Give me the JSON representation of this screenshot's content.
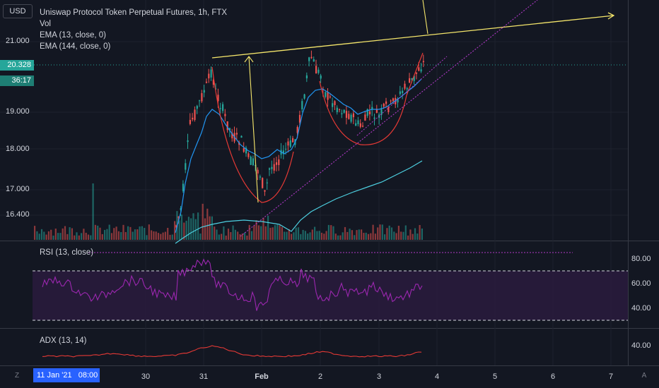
{
  "header": {
    "currency_badge": "USD",
    "title": "Uniswap Protocol Token Perpetual Futures, 1h, FTX",
    "indicators": [
      "Vol",
      "EMA (13, close, 0)",
      "EMA (144, close, 0)"
    ]
  },
  "price_axis": {
    "labels": [
      "21.000",
      "19.000",
      "18.000",
      "17.000",
      "16.400"
    ],
    "current_price": "20.328",
    "countdown": "36:17"
  },
  "rsi": {
    "label": "RSI (13, close)",
    "levels": [
      "80.00",
      "60.00",
      "40.00"
    ]
  },
  "adx": {
    "label": "ADX (13, 14)",
    "levels": [
      "40.00"
    ]
  },
  "time_axis": {
    "crosshair_label": "11 Jan '21   08:00",
    "labels": [
      "30",
      "31",
      "Feb",
      "2",
      "3",
      "4",
      "5",
      "6",
      "7"
    ]
  },
  "buttons": {
    "goto_date": "Z",
    "auto_scale": "A"
  },
  "colors": {
    "background": "#131722",
    "up": "#26a69a",
    "down": "#ef5350",
    "ema13": "#2196f3",
    "ema144": "#4dd0e1",
    "trendline": "#f5e66b",
    "cup": "#e53935",
    "rsi": "#9c27b0"
  }
}
